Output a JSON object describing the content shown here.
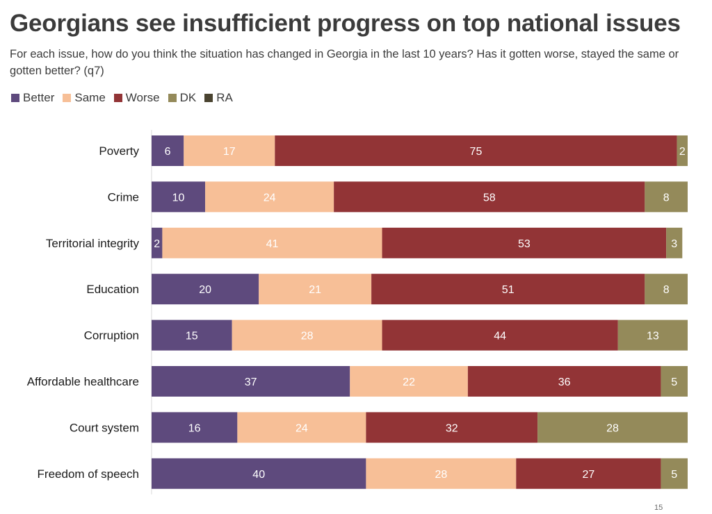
{
  "title": "Georgians see insufficient progress on top national issues",
  "subtitle": "For each issue, how do you think the situation has changed in Georgia in the last 10 years? Has it gotten worse, stayed the same or gotten better? (q7)",
  "page_number": "15",
  "colors": {
    "Better": "#5e4a7d",
    "Same": "#f7bf97",
    "Worse": "#923436",
    "DK": "#948a5a",
    "RA": "#4a4330"
  },
  "chart_data": {
    "type": "bar",
    "orientation": "horizontal",
    "stacked": true,
    "title": "Georgians see insufficient progress on top national issues",
    "xlim": [
      0,
      100
    ],
    "legend_position": "top-left",
    "categories": [
      "Poverty",
      "Crime",
      "Territorial integrity",
      "Education",
      "Corruption",
      "Affordable healthcare",
      "Court system",
      "Freedom of speech"
    ],
    "series": [
      {
        "name": "Better",
        "values": [
          6,
          10,
          2,
          20,
          15,
          37,
          16,
          40
        ]
      },
      {
        "name": "Same",
        "values": [
          17,
          24,
          41,
          21,
          28,
          22,
          24,
          28
        ]
      },
      {
        "name": "Worse",
        "values": [
          75,
          58,
          53,
          51,
          44,
          36,
          32,
          27
        ]
      },
      {
        "name": "DK",
        "values": [
          2,
          8,
          3,
          8,
          13,
          5,
          28,
          5
        ]
      },
      {
        "name": "RA",
        "values": [
          0,
          0,
          0,
          0,
          0,
          0,
          0,
          0
        ]
      }
    ]
  }
}
